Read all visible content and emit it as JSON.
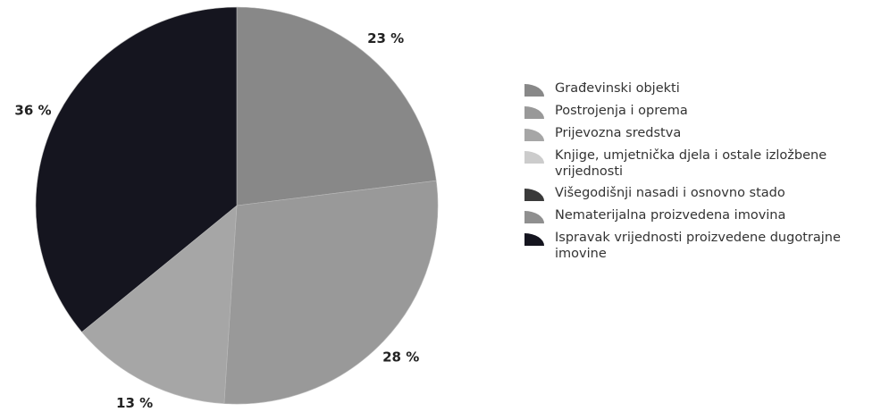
{
  "chart_data": {
    "type": "pie",
    "categories": [
      "Građevinski objekti",
      "Postrojenja i oprema",
      "Prijevozna sredstva",
      "Knjige, umjetnička djela i ostale izložbene vrijednosti",
      "Višegodišnji nasadi i osnovno stado",
      "Nematerijalna proizvedena imovina",
      "Ispravak vrijednosti proizvedene dugotrajne imovine"
    ],
    "values": [
      23,
      28,
      13,
      0,
      0,
      0,
      36
    ],
    "value_labels": [
      "23 %",
      "28 %",
      "13 %",
      null,
      null,
      null,
      "36 %"
    ],
    "colors": [
      "#888888",
      "#999999",
      "#a6a6a6",
      "#cccccc",
      "#3a3a3a",
      "#8f8f8f",
      "#15151f"
    ]
  }
}
